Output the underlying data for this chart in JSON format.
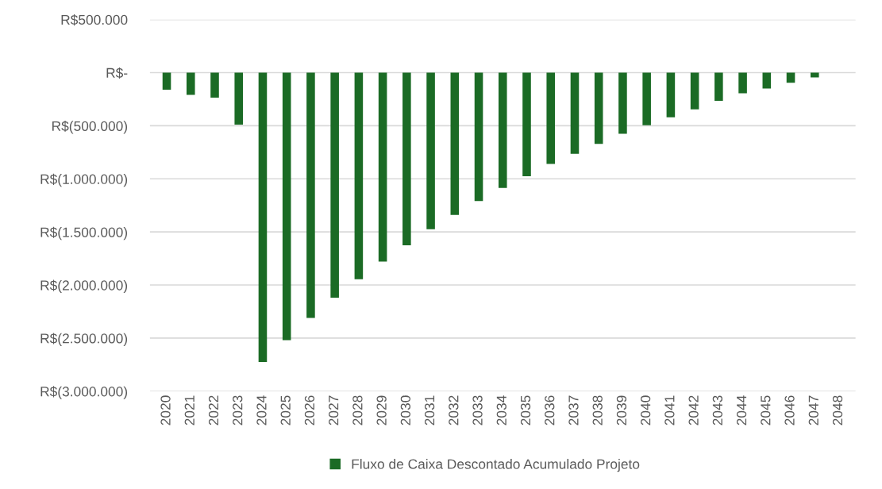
{
  "chart_data": {
    "type": "bar",
    "categories": [
      "2020",
      "2021",
      "2022",
      "2023",
      "2024",
      "2025",
      "2026",
      "2027",
      "2028",
      "2029",
      "2030",
      "2031",
      "2032",
      "2033",
      "2034",
      "2035",
      "2036",
      "2037",
      "2038",
      "2039",
      "2040",
      "2041",
      "2042",
      "2043",
      "2044",
      "2045",
      "2046",
      "2047",
      "2048"
    ],
    "series": [
      {
        "name": "Fluxo de Caixa Descontado Acumulado Projeto",
        "color": "#1b6b25",
        "values": [
          -160000,
          -210000,
          -235000,
          -490000,
          -2725000,
          -2520000,
          -2310000,
          -2120000,
          -1945000,
          -1780000,
          -1625000,
          -1475000,
          -1340000,
          -1210000,
          -1085000,
          -975000,
          -860000,
          -765000,
          -670000,
          -575000,
          -495000,
          -420000,
          -345000,
          -265000,
          -195000,
          -150000,
          -95000,
          -45000,
          0
        ]
      }
    ],
    "ylim": [
      -3000000,
      500000
    ],
    "yticks": [
      {
        "value": 500000,
        "label": "R$500.000"
      },
      {
        "value": 0,
        "label": "R$-"
      },
      {
        "value": -500000,
        "label": "R$(500.000)"
      },
      {
        "value": -1000000,
        "label": "R$(1.000.000)"
      },
      {
        "value": -1500000,
        "label": "R$(1.500.000)"
      },
      {
        "value": -2000000,
        "label": "R$(2.000.000)"
      },
      {
        "value": -2500000,
        "label": "R$(2.500.000)"
      },
      {
        "value": -3000000,
        "label": "R$(3.000.000)"
      }
    ],
    "grid": "y",
    "legend": "bottom"
  }
}
